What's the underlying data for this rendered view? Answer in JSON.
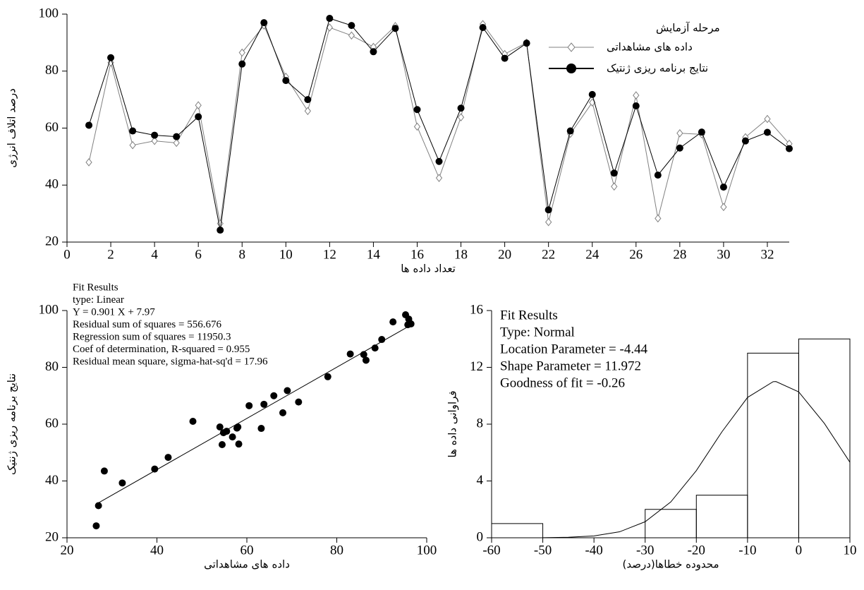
{
  "chart_data": [
    {
      "type": "line",
      "x_label": "تعداد داده ها",
      "y_label": "درصد اتلاف انرژی",
      "legend_title": "مرحله آزمایش",
      "x": [
        1,
        2,
        3,
        4,
        5,
        6,
        7,
        8,
        9,
        10,
        11,
        12,
        13,
        14,
        15,
        16,
        17,
        18,
        19,
        20,
        21,
        22,
        23,
        24,
        25,
        26,
        27,
        28,
        29,
        30,
        31,
        32,
        33
      ],
      "series": [
        {
          "name": "داده های مشاهداتی",
          "color": "#808080",
          "marker": "diamond",
          "values": [
            48,
            83,
            54,
            55.5,
            54.8,
            68,
            26.5,
            86.5,
            96,
            78,
            66,
            95.3,
            92.5,
            88.5,
            95.8,
            60.5,
            42.5,
            63.8,
            96.5,
            86,
            90,
            27,
            58,
            69,
            39.5,
            71.5,
            28.3,
            58.2,
            57.8,
            32.3,
            56.8,
            63.2,
            54.5
          ]
        },
        {
          "name": "نتایج برنامه ریزی ژنتیک",
          "color": "#000000",
          "marker": "circle",
          "values": [
            61,
            84.7,
            59,
            57.5,
            57,
            64,
            24.2,
            82.5,
            97,
            76.7,
            70,
            98.5,
            96,
            86.8,
            95,
            66.5,
            48.3,
            67,
            95.3,
            84.5,
            89.8,
            31.3,
            59,
            71.8,
            44.2,
            67.8,
            43.5,
            53,
            58.6,
            39.3,
            55.5,
            58.5,
            52.8
          ]
        }
      ],
      "xlim": [
        0,
        33
      ],
      "xticks": [
        0,
        2,
        4,
        6,
        8,
        10,
        12,
        14,
        16,
        18,
        20,
        22,
        24,
        26,
        28,
        30,
        32
      ],
      "ylim": [
        20,
        100
      ],
      "yticks": [
        20,
        40,
        60,
        80,
        100
      ]
    },
    {
      "type": "scatter",
      "x_label": "داده های مشاهداتی",
      "y_label": "نتایج برنامه ریزی ژنتیک",
      "annotations": [
        "Fit Results",
        "type: Linear",
        "Y = 0.901 X + 7.97",
        "Residual sum of squares = 556.676",
        "Regression sum of squares = 11950.3",
        "Coef of determination, R-squared = 0.955",
        "Residual mean square, sigma-hat-sq'd = 17.96"
      ],
      "color": "#000000",
      "x": [
        48,
        83,
        54,
        55.5,
        54.8,
        68,
        26.5,
        86.5,
        96,
        78,
        66,
        95.3,
        92.5,
        88.5,
        95.8,
        60.5,
        42.5,
        63.8,
        96.5,
        86,
        90,
        27,
        58,
        69,
        39.5,
        71.5,
        28.3,
        58.2,
        57.8,
        32.3,
        56.8,
        63.2,
        54.5
      ],
      "values": [
        61,
        84.7,
        59,
        57.5,
        57,
        64,
        24.2,
        82.5,
        97,
        76.7,
        70,
        98.5,
        96,
        86.8,
        95,
        66.5,
        48.3,
        67,
        95.3,
        84.5,
        89.8,
        31.3,
        59,
        71.8,
        44.2,
        67.8,
        43.5,
        53,
        58.6,
        39.3,
        55.5,
        58.5,
        52.8
      ],
      "fit": {
        "x": [
          26.5,
          96.5
        ],
        "values": [
          31.85,
          94.9
        ]
      },
      "xlim": [
        20,
        100
      ],
      "xticks": [
        20,
        40,
        60,
        80,
        100
      ],
      "ylim": [
        20,
        100
      ],
      "yticks": [
        20,
        40,
        60,
        80,
        100
      ]
    },
    {
      "type": "histogram",
      "x_label": "محدوده خطاها(درصد)",
      "y_label": "فراوانی داده ها",
      "annotations": [
        "Fit Results",
        "Type: Normal",
        "Location Parameter = -4.44",
        "Shape Parameter = 11.972",
        "Goodness of fit = -0.26"
      ],
      "bins": [
        -60,
        -50,
        -40,
        -30,
        -20,
        -10,
        0,
        10
      ],
      "values": [
        1,
        0,
        0,
        2,
        3,
        13,
        14
      ],
      "curve": {
        "x": [
          -50,
          -45,
          -40,
          -35,
          -30,
          -25,
          -20,
          -15,
          -10,
          -5,
          -4.44,
          0,
          5,
          10
        ],
        "values": [
          0.008,
          0.035,
          0.13,
          0.42,
          1.13,
          2.52,
          4.73,
          7.46,
          9.88,
          10.99,
          11,
          10.27,
          8.06,
          5.32
        ]
      },
      "xlim": [
        -60,
        10
      ],
      "xticks": [
        -60,
        -50,
        -40,
        -30,
        -20,
        -10,
        0,
        10
      ],
      "ylim": [
        0,
        16
      ],
      "yticks": [
        0,
        4,
        8,
        12,
        16
      ]
    }
  ]
}
